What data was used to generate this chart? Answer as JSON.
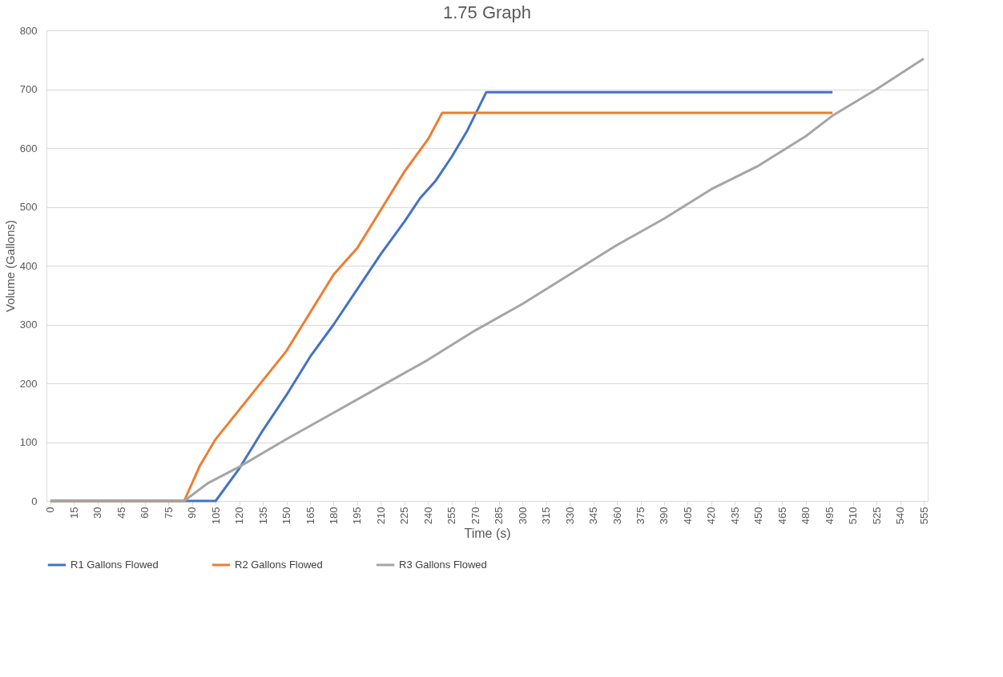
{
  "chart_data": {
    "type": "line",
    "title": "1.75 Graph",
    "xlabel": "Time  (s)",
    "ylabel": "Volume (Gallons)",
    "xlim": [
      -2.5,
      557.5
    ],
    "xticks": [
      0,
      15,
      30,
      45,
      60,
      75,
      90,
      105,
      120,
      135,
      150,
      165,
      180,
      195,
      210,
      225,
      240,
      255,
      270,
      285,
      300,
      315,
      330,
      345,
      360,
      375,
      390,
      405,
      420,
      435,
      450,
      465,
      480,
      495,
      510,
      525,
      540,
      555
    ],
    "ylim": [
      0,
      800
    ],
    "yticks": [
      0,
      100,
      200,
      300,
      400,
      500,
      600,
      700,
      800
    ],
    "grid": "y",
    "legend": "bottom",
    "marker": "none",
    "line_style": "solid",
    "series": [
      {
        "name": "R1 Gallons Flowed",
        "color": "#4472c4",
        "x": [
          0,
          105,
          120,
          135,
          150,
          165,
          180,
          195,
          210,
          225,
          235,
          245,
          255,
          265,
          277,
          497
        ],
        "values": [
          0,
          0,
          55,
          120,
          180,
          245,
          300,
          360,
          420,
          475,
          515,
          545,
          585,
          630,
          695,
          695
        ]
      },
      {
        "name": "R2 Gallons Flowed",
        "color": "#ed7d31",
        "x": [
          0,
          85,
          95,
          105,
          120,
          135,
          150,
          165,
          180,
          195,
          210,
          225,
          240,
          249,
          497
        ],
        "values": [
          0,
          0,
          60,
          105,
          155,
          205,
          255,
          320,
          385,
          430,
          495,
          560,
          615,
          660,
          660
        ]
      },
      {
        "name": "R3 Gallons Flowed",
        "color": "#a5a5a5",
        "x": [
          0,
          85,
          100,
          120,
          150,
          180,
          210,
          240,
          270,
          300,
          330,
          360,
          390,
          420,
          450,
          480,
          497,
          525,
          555
        ],
        "values": [
          0,
          0,
          30,
          58,
          105,
          150,
          195,
          240,
          290,
          335,
          385,
          435,
          480,
          530,
          570,
          620,
          655,
          700,
          752
        ]
      }
    ]
  }
}
